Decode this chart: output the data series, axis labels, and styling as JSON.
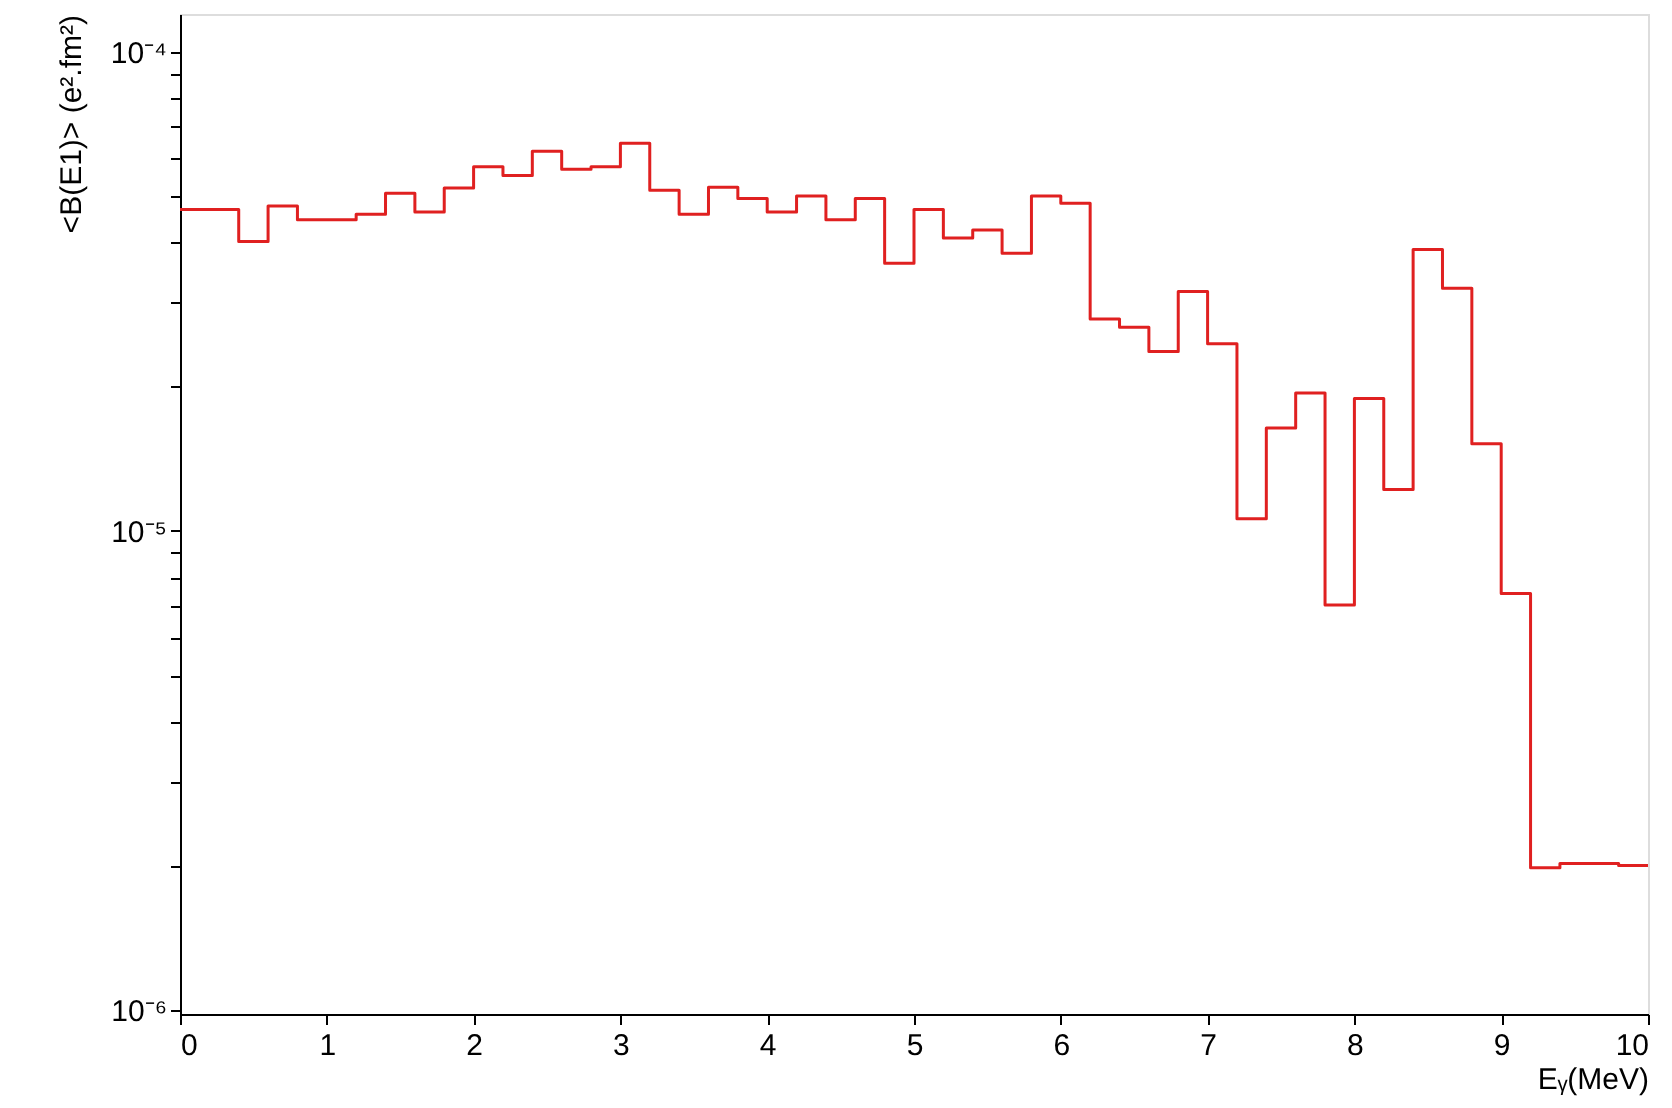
{
  "chart_data": {
    "type": "histogram",
    "xlabel": "Eᵧ(MeV)",
    "ylabel": "<B(E1)> (e².fm²)",
    "bins": [
      0,
      0.2,
      0.4,
      0.6,
      0.8,
      1.0,
      1.2,
      1.4,
      1.6,
      1.8,
      2.0,
      2.2,
      2.4,
      2.6,
      2.8,
      3.0,
      3.2,
      3.4,
      3.6,
      3.8,
      4.0,
      4.2,
      4.4,
      4.6,
      4.8,
      5.0,
      5.2,
      5.4,
      5.6,
      5.8,
      6.0,
      6.2,
      6.4,
      6.6,
      6.8,
      7.0,
      7.2,
      7.4,
      7.6,
      7.8,
      8.0,
      8.2,
      8.4,
      8.6,
      8.8,
      9.0,
      9.2,
      9.4,
      9.6,
      9.8,
      10.0
    ],
    "values": [
      4.69e-05,
      4.69e-05,
      4.02e-05,
      4.77e-05,
      4.46e-05,
      4.46e-05,
      4.58e-05,
      5.07e-05,
      4.63e-05,
      5.2e-05,
      5.76e-05,
      5.52e-05,
      6.2e-05,
      5.69e-05,
      5.76e-05,
      6.45e-05,
      5.14e-05,
      4.58e-05,
      5.22e-05,
      4.94e-05,
      4.63e-05,
      5e-05,
      4.46e-05,
      4.94e-05,
      3.62e-05,
      4.69e-05,
      4.09e-05,
      4.25e-05,
      3.8e-05,
      5e-05,
      4.83e-05,
      2.77e-05,
      2.66e-05,
      2.37e-05,
      3.16e-05,
      2.46e-05,
      1.06e-05,
      1.64e-05,
      1.94e-05,
      7e-06,
      1.89e-05,
      1.22e-05,
      3.87e-05,
      3.21e-05,
      1.52e-05,
      7.4e-06,
      1.98e-06,
      2.02e-06,
      2.02e-06,
      2e-06
    ],
    "color": "#e02020",
    "log": "y",
    "xlim": [
      0,
      10
    ],
    "xticks": [
      0,
      1,
      2,
      3,
      4,
      5,
      6,
      7,
      8,
      9,
      10
    ],
    "ylim": [
      9.8e-07,
      0.00012
    ],
    "yticks": [
      {
        "value": 1e-06,
        "label": "10⁻⁶"
      },
      {
        "value": 2e-06,
        "label": null
      },
      {
        "value": 3e-06,
        "label": null
      },
      {
        "value": 4e-06,
        "label": null
      },
      {
        "value": 5e-06,
        "label": null
      },
      {
        "value": 6e-06,
        "label": null
      },
      {
        "value": 7e-06,
        "label": null
      },
      {
        "value": 8e-06,
        "label": null
      },
      {
        "value": 9e-06,
        "label": null
      },
      {
        "value": 1e-05,
        "label": "10⁻⁵"
      },
      {
        "value": 2e-05,
        "label": null
      },
      {
        "value": 3e-05,
        "label": null
      },
      {
        "value": 4e-05,
        "label": null
      },
      {
        "value": 5e-05,
        "label": null
      },
      {
        "value": 6e-05,
        "label": null
      },
      {
        "value": 7e-05,
        "label": null
      },
      {
        "value": 8e-05,
        "label": null
      },
      {
        "value": 9e-05,
        "label": null
      },
      {
        "value": 0.0001,
        "label": "10⁻⁴"
      }
    ]
  }
}
